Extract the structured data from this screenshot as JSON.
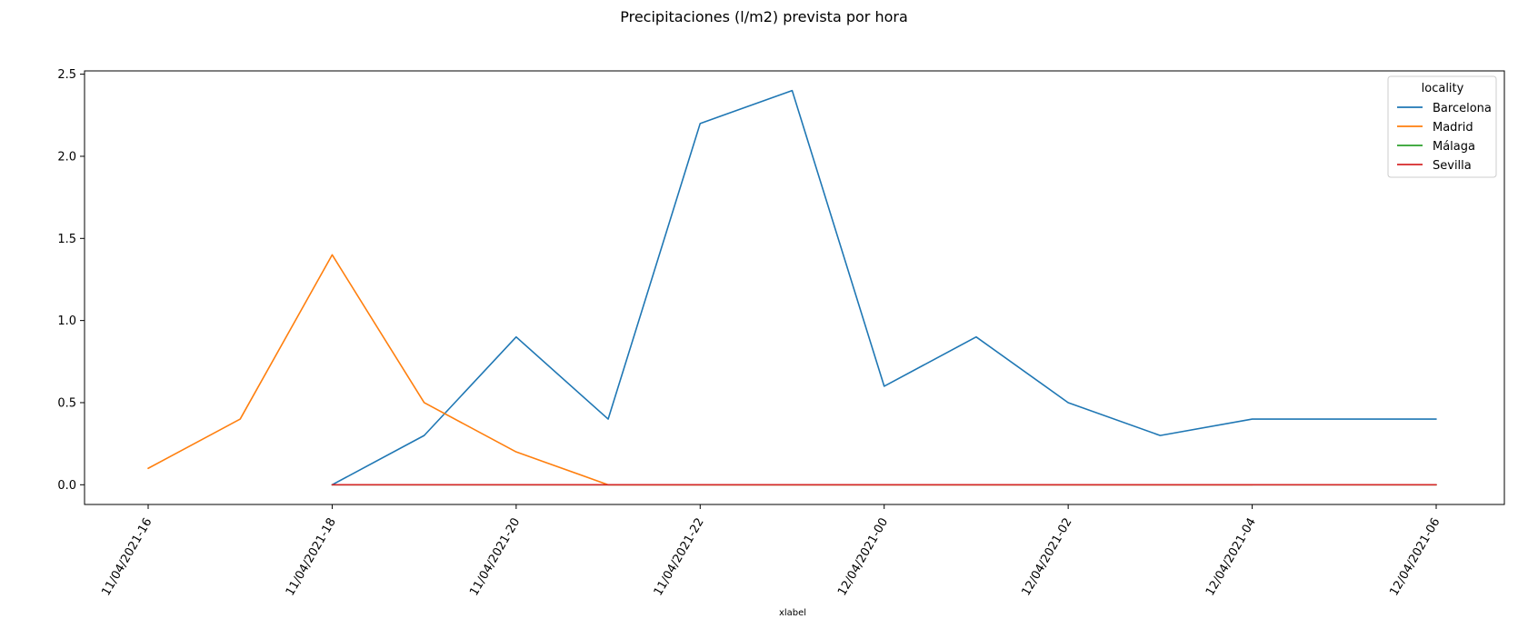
{
  "chart_data": {
    "type": "line",
    "title": "Precipitaciones (l/m2) prevista por hora",
    "xlabel": "xlabel",
    "ylabel": "",
    "ylim": [
      -0.12,
      2.52
    ],
    "yticks": [
      0.0,
      0.5,
      1.0,
      1.5,
      2.0,
      2.5
    ],
    "ytick_labels": [
      "0.0",
      "0.5",
      "1.0",
      "1.5",
      "2.0",
      "2.5"
    ],
    "x": [
      "11/04/2021-16",
      "11/04/2021-17",
      "11/04/2021-18",
      "11/04/2021-19",
      "11/04/2021-20",
      "11/04/2021-21",
      "11/04/2021-22",
      "11/04/2021-23",
      "12/04/2021-00",
      "12/04/2021-01",
      "12/04/2021-02",
      "12/04/2021-03",
      "12/04/2021-04",
      "12/04/2021-05",
      "12/04/2021-06"
    ],
    "xticks": [
      "11/04/2021-16",
      "11/04/2021-18",
      "11/04/2021-20",
      "11/04/2021-22",
      "12/04/2021-00",
      "12/04/2021-02",
      "12/04/2021-04",
      "12/04/2021-06"
    ],
    "legend_title": "locality",
    "legend_position": "top-right",
    "grid": false,
    "series": [
      {
        "name": "Barcelona",
        "color": "#1f77b4",
        "values": [
          null,
          null,
          0.0,
          0.3,
          0.9,
          0.4,
          2.2,
          2.4,
          0.6,
          0.9,
          0.5,
          0.3,
          0.4,
          0.4,
          0.4
        ]
      },
      {
        "name": "Madrid",
        "color": "#ff7f0e",
        "values": [
          0.1,
          0.4,
          1.4,
          0.5,
          0.2,
          0.0,
          0.0,
          0.0,
          0.0,
          0.0,
          0.0,
          0.0,
          0.0,
          null,
          null
        ]
      },
      {
        "name": "Málaga",
        "color": "#2ca02c",
        "values": [
          null,
          null,
          0.0,
          0.0,
          0.0,
          0.0,
          0.0,
          0.0,
          0.0,
          0.0,
          0.0,
          0.0,
          0.0,
          0.0,
          0.0
        ]
      },
      {
        "name": "Sevilla",
        "color": "#d62728",
        "values": [
          null,
          null,
          0.0,
          0.0,
          0.0,
          0.0,
          0.0,
          0.0,
          0.0,
          0.0,
          0.0,
          0.0,
          0.0,
          0.0,
          0.0
        ]
      }
    ]
  }
}
